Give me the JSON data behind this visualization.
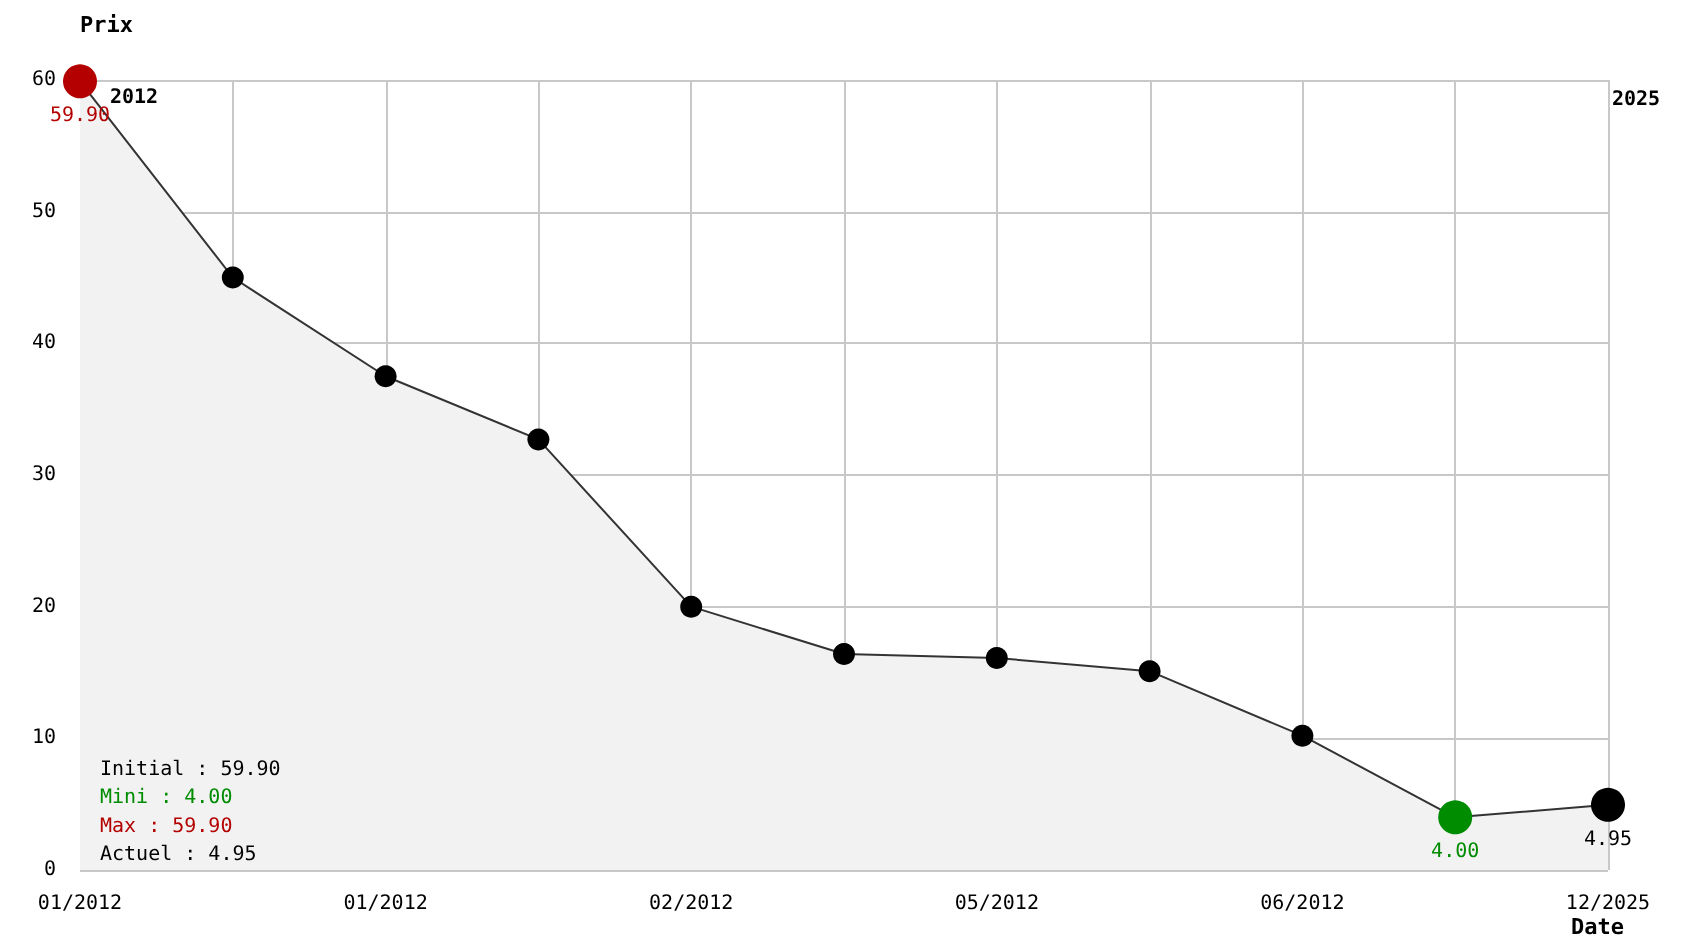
{
  "chart_data": {
    "type": "area",
    "xlabel": "Date",
    "ylabel": "Prix",
    "categories": [
      "01/2012",
      null,
      "01/2012",
      null,
      "02/2012",
      null,
      "05/2012",
      null,
      "06/2012",
      null,
      "12/2025"
    ],
    "values": [
      59.9,
      45,
      37.5,
      32.7,
      20,
      16.4,
      16.1,
      15.1,
      10.2,
      4.0,
      4.95
    ],
    "color": "#f2f2f2",
    "colors": [
      "#b40000",
      "#000000",
      "#000000",
      "#000000",
      "#000000",
      "#000000",
      "#000000",
      "#000000",
      "#000000",
      "#008c00",
      "#000000"
    ],
    "value_labels": [
      "59.90",
      null,
      null,
      null,
      null,
      null,
      null,
      null,
      null,
      "4.00",
      "4.95"
    ],
    "ylim": [
      0,
      60
    ],
    "yticks": [
      0,
      10,
      20,
      30,
      40,
      50,
      60
    ],
    "grid": true,
    "marker": "circle",
    "annotations": [
      "2012",
      "2025",
      "Initial : 59.90",
      "Mini : 4.00",
      "Max : 59.90",
      "Actuel : 4.95"
    ]
  }
}
